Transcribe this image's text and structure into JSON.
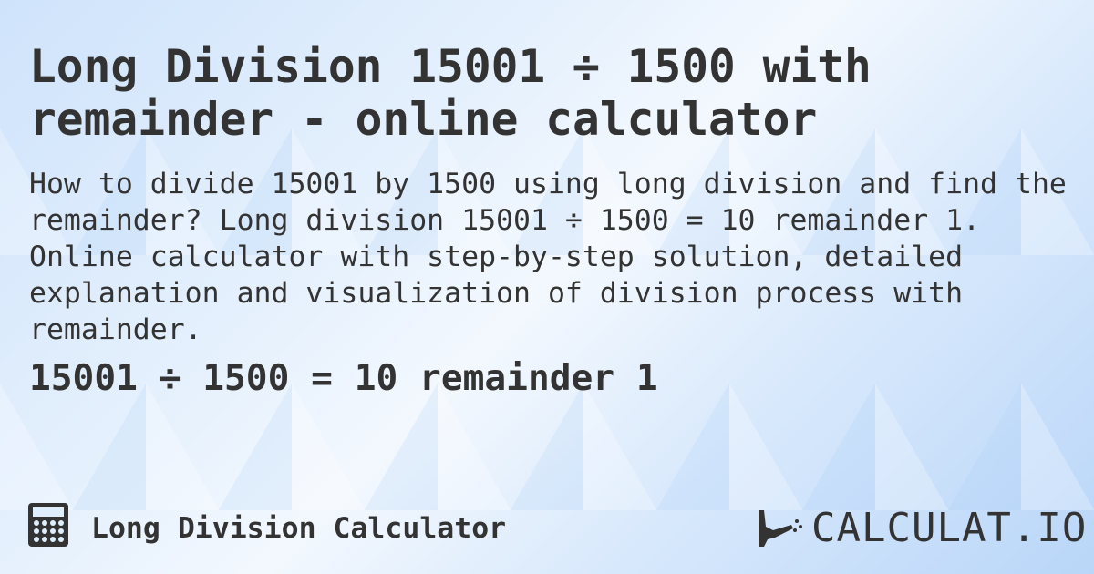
{
  "title": "Long Division 15001 ÷ 1500 with remainder - online calculator",
  "description": "How to divide 15001 by 1500 using long division and find the remainder? Long division 15001 ÷ 1500 = 10 remainder 1. Online calculator with step-by-step solution, detailed explanation and visualization of division process with remainder.",
  "result": "15001 ÷ 1500 = 10 remainder 1",
  "footer": {
    "calculator_name": "Long Division Calculator",
    "icon": "calculator-icon",
    "logo_text": "CALCULAT.IO"
  }
}
